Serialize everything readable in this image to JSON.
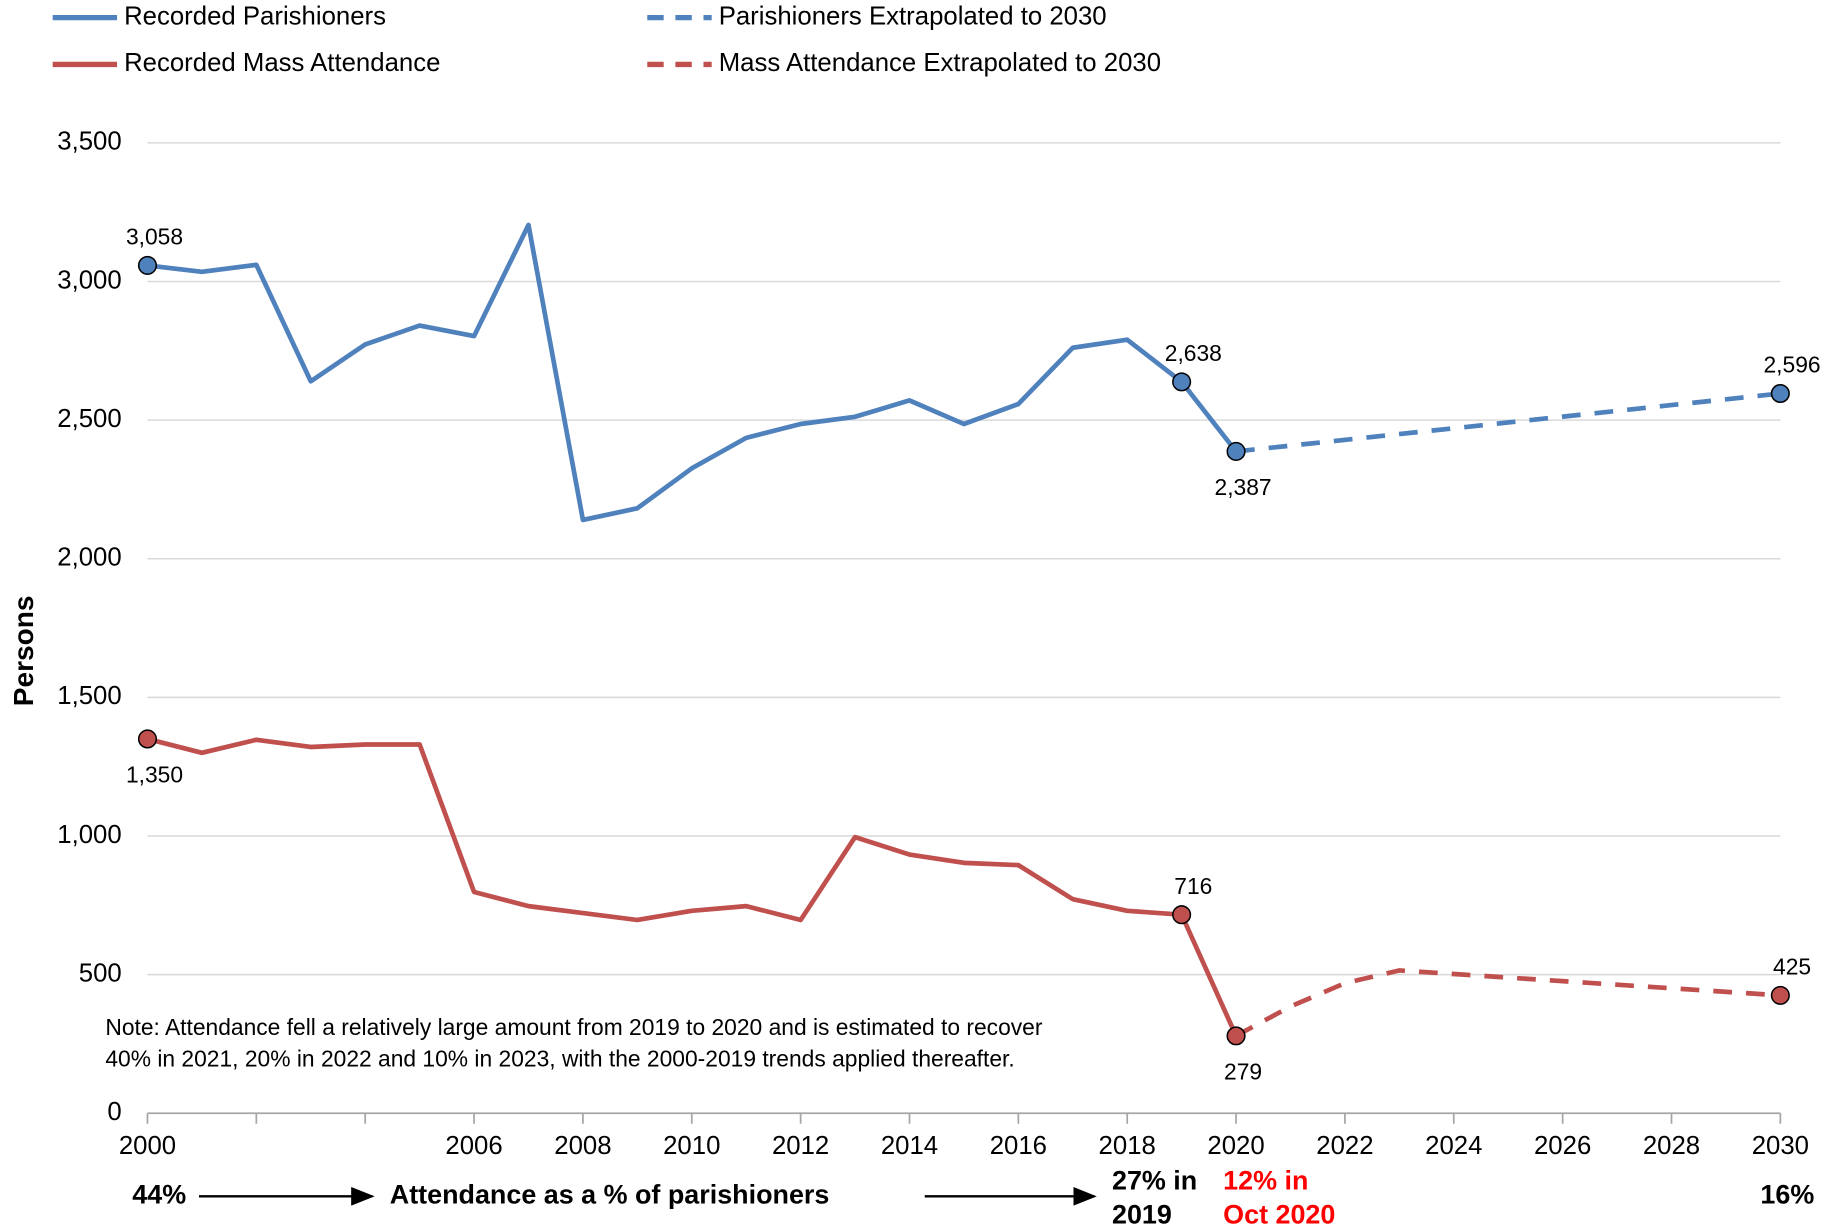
{
  "chart_data": {
    "type": "line",
    "y_label": "Persons",
    "xlim": [
      2000,
      2030
    ],
    "xticks": [
      2000,
      2006,
      2008,
      2010,
      2012,
      2014,
      2016,
      2018,
      2020,
      2022,
      2024,
      2026,
      2028,
      2030
    ],
    "xticks_unlabeled": [
      2002,
      2004
    ],
    "ylim": [
      0,
      3500
    ],
    "yticks": [
      0,
      500,
      {
        "value": 1000,
        "label": "1,000"
      },
      {
        "value": 1500,
        "label": "1,500"
      },
      {
        "value": 2000,
        "label": "2,000"
      },
      {
        "value": 2500,
        "label": "2,500"
      },
      {
        "value": 3000,
        "label": "3,000"
      },
      {
        "value": 3500,
        "label": "3,500"
      }
    ],
    "grid": true,
    "series": [
      {
        "name": "Recorded Parishioners",
        "color": "#4f81bd",
        "dashed": false,
        "x": [
          2000,
          2001,
          2002,
          2003,
          2004,
          2005,
          2006,
          2007,
          2008,
          2009,
          2010,
          2011,
          2012,
          2013,
          2014,
          2015,
          2016,
          2017,
          2018,
          2019,
          2020
        ],
        "values": [
          3058,
          3035,
          3060,
          2640,
          2773,
          2841,
          2803,
          3204,
          2140,
          2182,
          2326,
          2436,
          2486,
          2512,
          2571,
          2486,
          2558,
          2761,
          2790,
          2638,
          2387
        ],
        "value_labels": [
          "3,058",
          null,
          null,
          null,
          null,
          null,
          null,
          null,
          null,
          null,
          null,
          null,
          null,
          null,
          null,
          null,
          null,
          null,
          null,
          "2,638",
          "2,387"
        ]
      },
      {
        "name": "Parishioners Extrapolated to 2030",
        "color": "#4f81bd",
        "dashed": true,
        "x": [
          2020,
          2030
        ],
        "values": [
          2387,
          2596
        ],
        "value_labels": [
          null,
          "2,596"
        ]
      },
      {
        "name": "Recorded Mass Attendance",
        "color": "#c0504d",
        "dashed": false,
        "x": [
          2000,
          2001,
          2002,
          2003,
          2004,
          2005,
          2006,
          2007,
          2008,
          2009,
          2010,
          2011,
          2012,
          2013,
          2014,
          2015,
          2016,
          2017,
          2018,
          2019,
          2020
        ],
        "values": [
          1350,
          1300,
          1347,
          1321,
          1330,
          1330,
          798,
          747,
          722,
          697,
          730,
          747,
          697,
          996,
          933,
          903,
          895,
          772,
          730,
          716,
          279
        ],
        "value_labels": [
          "1,350",
          null,
          null,
          null,
          null,
          null,
          null,
          null,
          null,
          null,
          null,
          null,
          null,
          null,
          null,
          null,
          null,
          null,
          null,
          "716",
          "279"
        ]
      },
      {
        "name": "Mass Attendance Extrapolated to 2030",
        "color": "#c0504d",
        "dashed": true,
        "x": [
          2020,
          2021,
          2022,
          2023,
          2030
        ],
        "values": [
          279,
          385,
          469,
          515,
          425
        ],
        "value_labels": [
          null,
          null,
          null,
          null,
          "425"
        ]
      }
    ],
    "note": [
      "Note: Attendance fell a relatively large amount from 2019 to 2020 and is estimated to recover",
      "40% in 2021, 20% in 2022 and 10% in 2023, with the 2000-2019 trends applied thereafter."
    ],
    "footer": {
      "start": "44%",
      "middle": "Attendance as a % of parishioners",
      "y2019": [
        "27% in",
        "2019"
      ],
      "y2020": [
        "12% in",
        "Oct 2020"
      ],
      "y2020_color": "#ff0000",
      "end": "16%"
    }
  }
}
